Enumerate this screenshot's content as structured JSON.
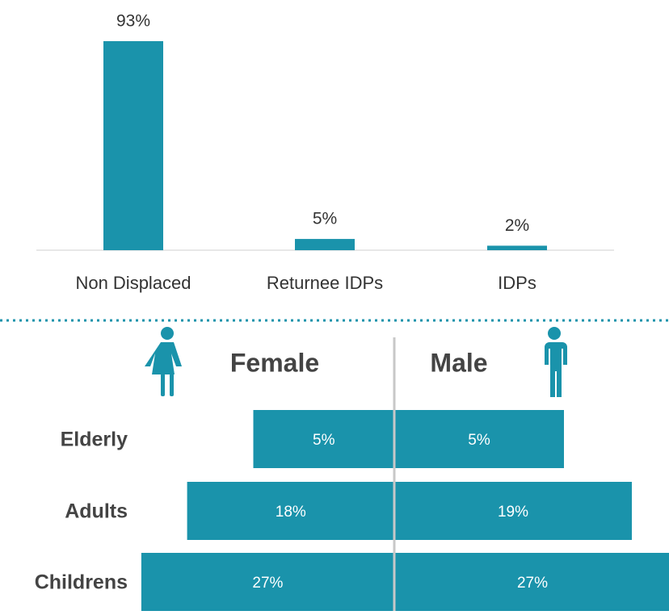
{
  "chart_data": [
    {
      "type": "bar",
      "categories": [
        "Non Displaced",
        "Returnee IDPs",
        "IDPs"
      ],
      "values": [
        93,
        5,
        2
      ],
      "value_labels": [
        "93%",
        "5%",
        "2%"
      ],
      "color": "#1a93ab"
    },
    {
      "type": "pyramid",
      "categories": [
        "Elderly",
        "Adults",
        "Childrens"
      ],
      "series": [
        {
          "name": "Female",
          "color": "#1a93ab",
          "values": [
            5,
            18,
            27
          ],
          "value_labels": [
            "5%",
            "18%",
            "27%"
          ]
        },
        {
          "name": "Male",
          "color": "#1a93ab",
          "values": [
            5,
            19,
            27
          ],
          "value_labels": [
            "5%",
            "19%",
            "27%"
          ]
        }
      ]
    }
  ]
}
